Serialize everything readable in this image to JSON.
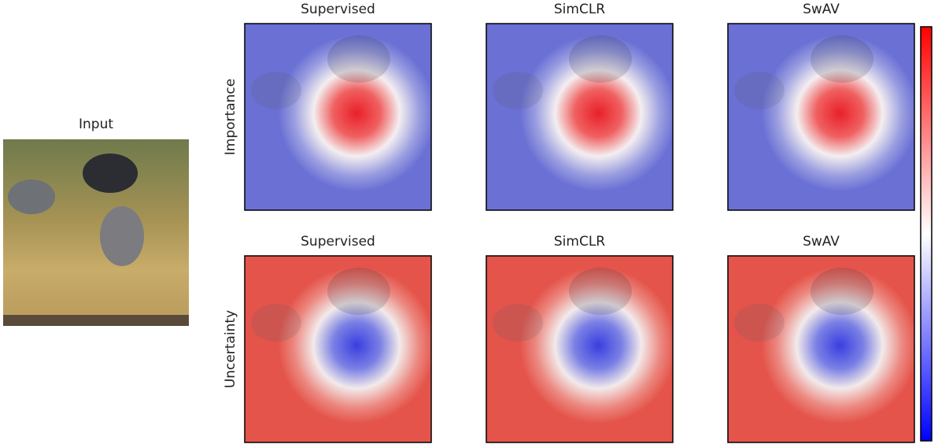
{
  "input": {
    "title": "Input"
  },
  "rows": [
    {
      "label": "Importance",
      "panels": [
        "Supervised",
        "SimCLR",
        "SwAV"
      ]
    },
    {
      "label": "Uncertainty",
      "panels": [
        "Supervised",
        "SimCLR",
        "SwAV"
      ]
    }
  ]
}
